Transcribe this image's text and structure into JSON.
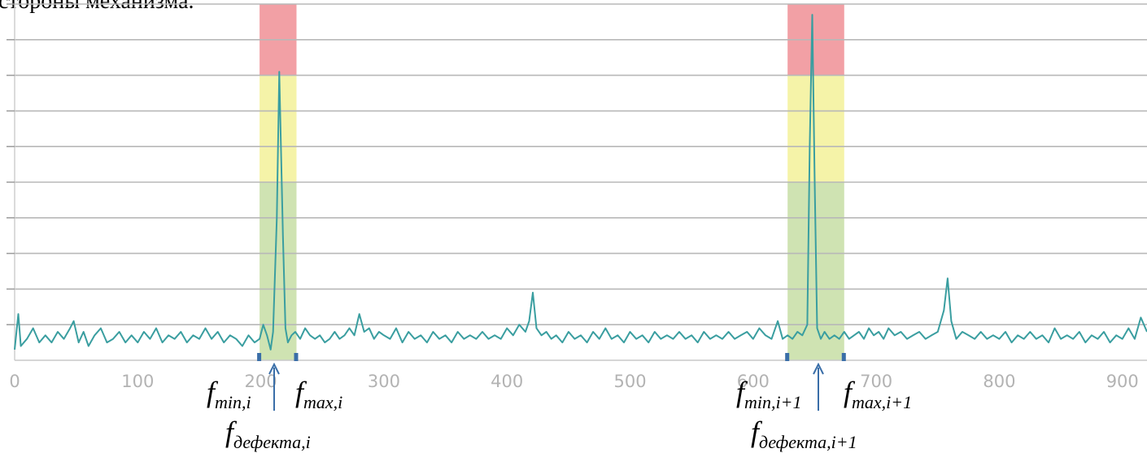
{
  "caption": "стороны механизма.",
  "colors": {
    "signal": "#3a9ea0",
    "grid": "#b8b8b8",
    "zone_red": "#f2a0a5",
    "zone_yellow": "#f5f3a8",
    "zone_green": "#cfe3b2",
    "marker": "#3a6ea8",
    "tick_label": "#b3b3b3"
  },
  "chart_data": {
    "type": "line",
    "title": "",
    "xlabel": "",
    "ylabel": "",
    "xlim": [
      0,
      920
    ],
    "ylim": [
      0,
      10
    ],
    "x_ticks": [
      0,
      100,
      200,
      300,
      400,
      500,
      600,
      700,
      800,
      900
    ],
    "x_tick_labels": [
      "0",
      "100",
      "200",
      "300",
      "400",
      "500",
      "600",
      "700",
      "800",
      "900"
    ],
    "grid": {
      "horizontal": true,
      "vertical": false,
      "lines_y": [
        1,
        2,
        3,
        4,
        5,
        6,
        7,
        8,
        9,
        10
      ]
    },
    "zones": [
      {
        "x_from": 199,
        "x_to": 229,
        "bands": [
          {
            "level": "green",
            "y_from": 0,
            "y_to": 5
          },
          {
            "level": "yellow",
            "y_from": 5,
            "y_to": 8
          },
          {
            "level": "red",
            "y_from": 8,
            "y_to": 10
          }
        ]
      },
      {
        "x_from": 628,
        "x_to": 674,
        "bands": [
          {
            "level": "green",
            "y_from": 0,
            "y_to": 5
          },
          {
            "level": "yellow",
            "y_from": 5,
            "y_to": 8
          },
          {
            "level": "red",
            "y_from": 8,
            "y_to": 10
          }
        ]
      }
    ],
    "band_markers_x": [
      199,
      229,
      628,
      674
    ],
    "series": [
      {
        "points": [
          [
            0,
            0.3
          ],
          [
            3,
            1.3
          ],
          [
            5,
            0.4
          ],
          [
            10,
            0.6
          ],
          [
            15,
            0.9
          ],
          [
            20,
            0.5
          ],
          [
            25,
            0.7
          ],
          [
            30,
            0.5
          ],
          [
            35,
            0.8
          ],
          [
            40,
            0.6
          ],
          [
            45,
            0.9
          ],
          [
            48,
            1.1
          ],
          [
            52,
            0.5
          ],
          [
            56,
            0.8
          ],
          [
            60,
            0.4
          ],
          [
            65,
            0.7
          ],
          [
            70,
            0.9
          ],
          [
            75,
            0.5
          ],
          [
            80,
            0.6
          ],
          [
            85,
            0.8
          ],
          [
            90,
            0.5
          ],
          [
            95,
            0.7
          ],
          [
            100,
            0.5
          ],
          [
            105,
            0.8
          ],
          [
            110,
            0.6
          ],
          [
            115,
            0.9
          ],
          [
            120,
            0.5
          ],
          [
            125,
            0.7
          ],
          [
            130,
            0.6
          ],
          [
            135,
            0.8
          ],
          [
            140,
            0.5
          ],
          [
            145,
            0.7
          ],
          [
            150,
            0.6
          ],
          [
            155,
            0.9
          ],
          [
            160,
            0.6
          ],
          [
            165,
            0.8
          ],
          [
            170,
            0.5
          ],
          [
            175,
            0.7
          ],
          [
            180,
            0.6
          ],
          [
            185,
            0.4
          ],
          [
            190,
            0.7
          ],
          [
            195,
            0.5
          ],
          [
            199,
            0.6
          ],
          [
            202,
            1.0
          ],
          [
            205,
            0.7
          ],
          [
            208,
            0.3
          ],
          [
            210,
            0.8
          ],
          [
            213,
            4.0
          ],
          [
            215,
            8.1
          ],
          [
            218,
            3.5
          ],
          [
            220,
            0.9
          ],
          [
            222,
            0.5
          ],
          [
            225,
            0.7
          ],
          [
            228,
            0.8
          ],
          [
            232,
            0.6
          ],
          [
            236,
            0.9
          ],
          [
            240,
            0.7
          ],
          [
            244,
            0.6
          ],
          [
            248,
            0.7
          ],
          [
            252,
            0.5
          ],
          [
            256,
            0.6
          ],
          [
            260,
            0.8
          ],
          [
            264,
            0.6
          ],
          [
            268,
            0.7
          ],
          [
            272,
            0.9
          ],
          [
            276,
            0.7
          ],
          [
            280,
            1.3
          ],
          [
            284,
            0.8
          ],
          [
            288,
            0.9
          ],
          [
            292,
            0.6
          ],
          [
            296,
            0.8
          ],
          [
            300,
            0.7
          ],
          [
            305,
            0.6
          ],
          [
            310,
            0.9
          ],
          [
            315,
            0.5
          ],
          [
            320,
            0.8
          ],
          [
            325,
            0.6
          ],
          [
            330,
            0.7
          ],
          [
            335,
            0.5
          ],
          [
            340,
            0.8
          ],
          [
            345,
            0.6
          ],
          [
            350,
            0.7
          ],
          [
            355,
            0.5
          ],
          [
            360,
            0.8
          ],
          [
            365,
            0.6
          ],
          [
            370,
            0.7
          ],
          [
            375,
            0.6
          ],
          [
            380,
            0.8
          ],
          [
            385,
            0.6
          ],
          [
            390,
            0.7
          ],
          [
            395,
            0.6
          ],
          [
            400,
            0.9
          ],
          [
            405,
            0.7
          ],
          [
            410,
            1.0
          ],
          [
            415,
            0.8
          ],
          [
            418,
            1.1
          ],
          [
            421,
            1.9
          ],
          [
            424,
            0.9
          ],
          [
            428,
            0.7
          ],
          [
            432,
            0.8
          ],
          [
            436,
            0.6
          ],
          [
            440,
            0.7
          ],
          [
            445,
            0.5
          ],
          [
            450,
            0.8
          ],
          [
            455,
            0.6
          ],
          [
            460,
            0.7
          ],
          [
            465,
            0.5
          ],
          [
            470,
            0.8
          ],
          [
            475,
            0.6
          ],
          [
            480,
            0.9
          ],
          [
            485,
            0.6
          ],
          [
            490,
            0.7
          ],
          [
            495,
            0.5
          ],
          [
            500,
            0.8
          ],
          [
            505,
            0.6
          ],
          [
            510,
            0.7
          ],
          [
            515,
            0.5
          ],
          [
            520,
            0.8
          ],
          [
            525,
            0.6
          ],
          [
            530,
            0.7
          ],
          [
            535,
            0.6
          ],
          [
            540,
            0.8
          ],
          [
            545,
            0.6
          ],
          [
            550,
            0.7
          ],
          [
            555,
            0.5
          ],
          [
            560,
            0.8
          ],
          [
            565,
            0.6
          ],
          [
            570,
            0.7
          ],
          [
            575,
            0.6
          ],
          [
            580,
            0.8
          ],
          [
            585,
            0.6
          ],
          [
            590,
            0.7
          ],
          [
            595,
            0.8
          ],
          [
            600,
            0.6
          ],
          [
            605,
            0.9
          ],
          [
            610,
            0.7
          ],
          [
            615,
            0.6
          ],
          [
            620,
            1.1
          ],
          [
            624,
            0.6
          ],
          [
            628,
            0.7
          ],
          [
            632,
            0.6
          ],
          [
            636,
            0.8
          ],
          [
            640,
            0.7
          ],
          [
            644,
            1.0
          ],
          [
            646,
            6.0
          ],
          [
            648,
            9.7
          ],
          [
            650,
            5.0
          ],
          [
            652,
            0.9
          ],
          [
            655,
            0.6
          ],
          [
            658,
            0.8
          ],
          [
            662,
            0.6
          ],
          [
            666,
            0.7
          ],
          [
            670,
            0.6
          ],
          [
            674,
            0.8
          ],
          [
            678,
            0.6
          ],
          [
            682,
            0.7
          ],
          [
            686,
            0.8
          ],
          [
            690,
            0.6
          ],
          [
            694,
            0.9
          ],
          [
            698,
            0.7
          ],
          [
            702,
            0.8
          ],
          [
            706,
            0.6
          ],
          [
            710,
            0.9
          ],
          [
            715,
            0.7
          ],
          [
            720,
            0.8
          ],
          [
            725,
            0.6
          ],
          [
            730,
            0.7
          ],
          [
            735,
            0.8
          ],
          [
            740,
            0.6
          ],
          [
            745,
            0.7
          ],
          [
            750,
            0.8
          ],
          [
            755,
            1.4
          ],
          [
            758,
            2.3
          ],
          [
            761,
            1.1
          ],
          [
            765,
            0.6
          ],
          [
            770,
            0.8
          ],
          [
            775,
            0.7
          ],
          [
            780,
            0.6
          ],
          [
            785,
            0.8
          ],
          [
            790,
            0.6
          ],
          [
            795,
            0.7
          ],
          [
            800,
            0.6
          ],
          [
            805,
            0.8
          ],
          [
            810,
            0.5
          ],
          [
            815,
            0.7
          ],
          [
            820,
            0.6
          ],
          [
            825,
            0.8
          ],
          [
            830,
            0.6
          ],
          [
            835,
            0.7
          ],
          [
            840,
            0.5
          ],
          [
            845,
            0.9
          ],
          [
            850,
            0.6
          ],
          [
            855,
            0.7
          ],
          [
            860,
            0.6
          ],
          [
            865,
            0.8
          ],
          [
            870,
            0.5
          ],
          [
            875,
            0.7
          ],
          [
            880,
            0.6
          ],
          [
            885,
            0.8
          ],
          [
            890,
            0.5
          ],
          [
            895,
            0.7
          ],
          [
            900,
            0.6
          ],
          [
            905,
            0.9
          ],
          [
            910,
            0.6
          ],
          [
            915,
            1.2
          ],
          [
            920,
            0.8
          ]
        ]
      }
    ]
  },
  "annotations": {
    "fmin_i": {
      "base": "f",
      "sub": "min,i"
    },
    "fmax_i": {
      "base": "f",
      "sub": "max,i"
    },
    "fdef_i": {
      "base": "f",
      "sub": "дефекта,i"
    },
    "fmin_i1": {
      "base": "f",
      "sub": "min,i+1"
    },
    "fmax_i1": {
      "base": "f",
      "sub": "max,i+1"
    },
    "fdef_i1": {
      "base": "f",
      "sub": "дефекта,i+1"
    }
  }
}
